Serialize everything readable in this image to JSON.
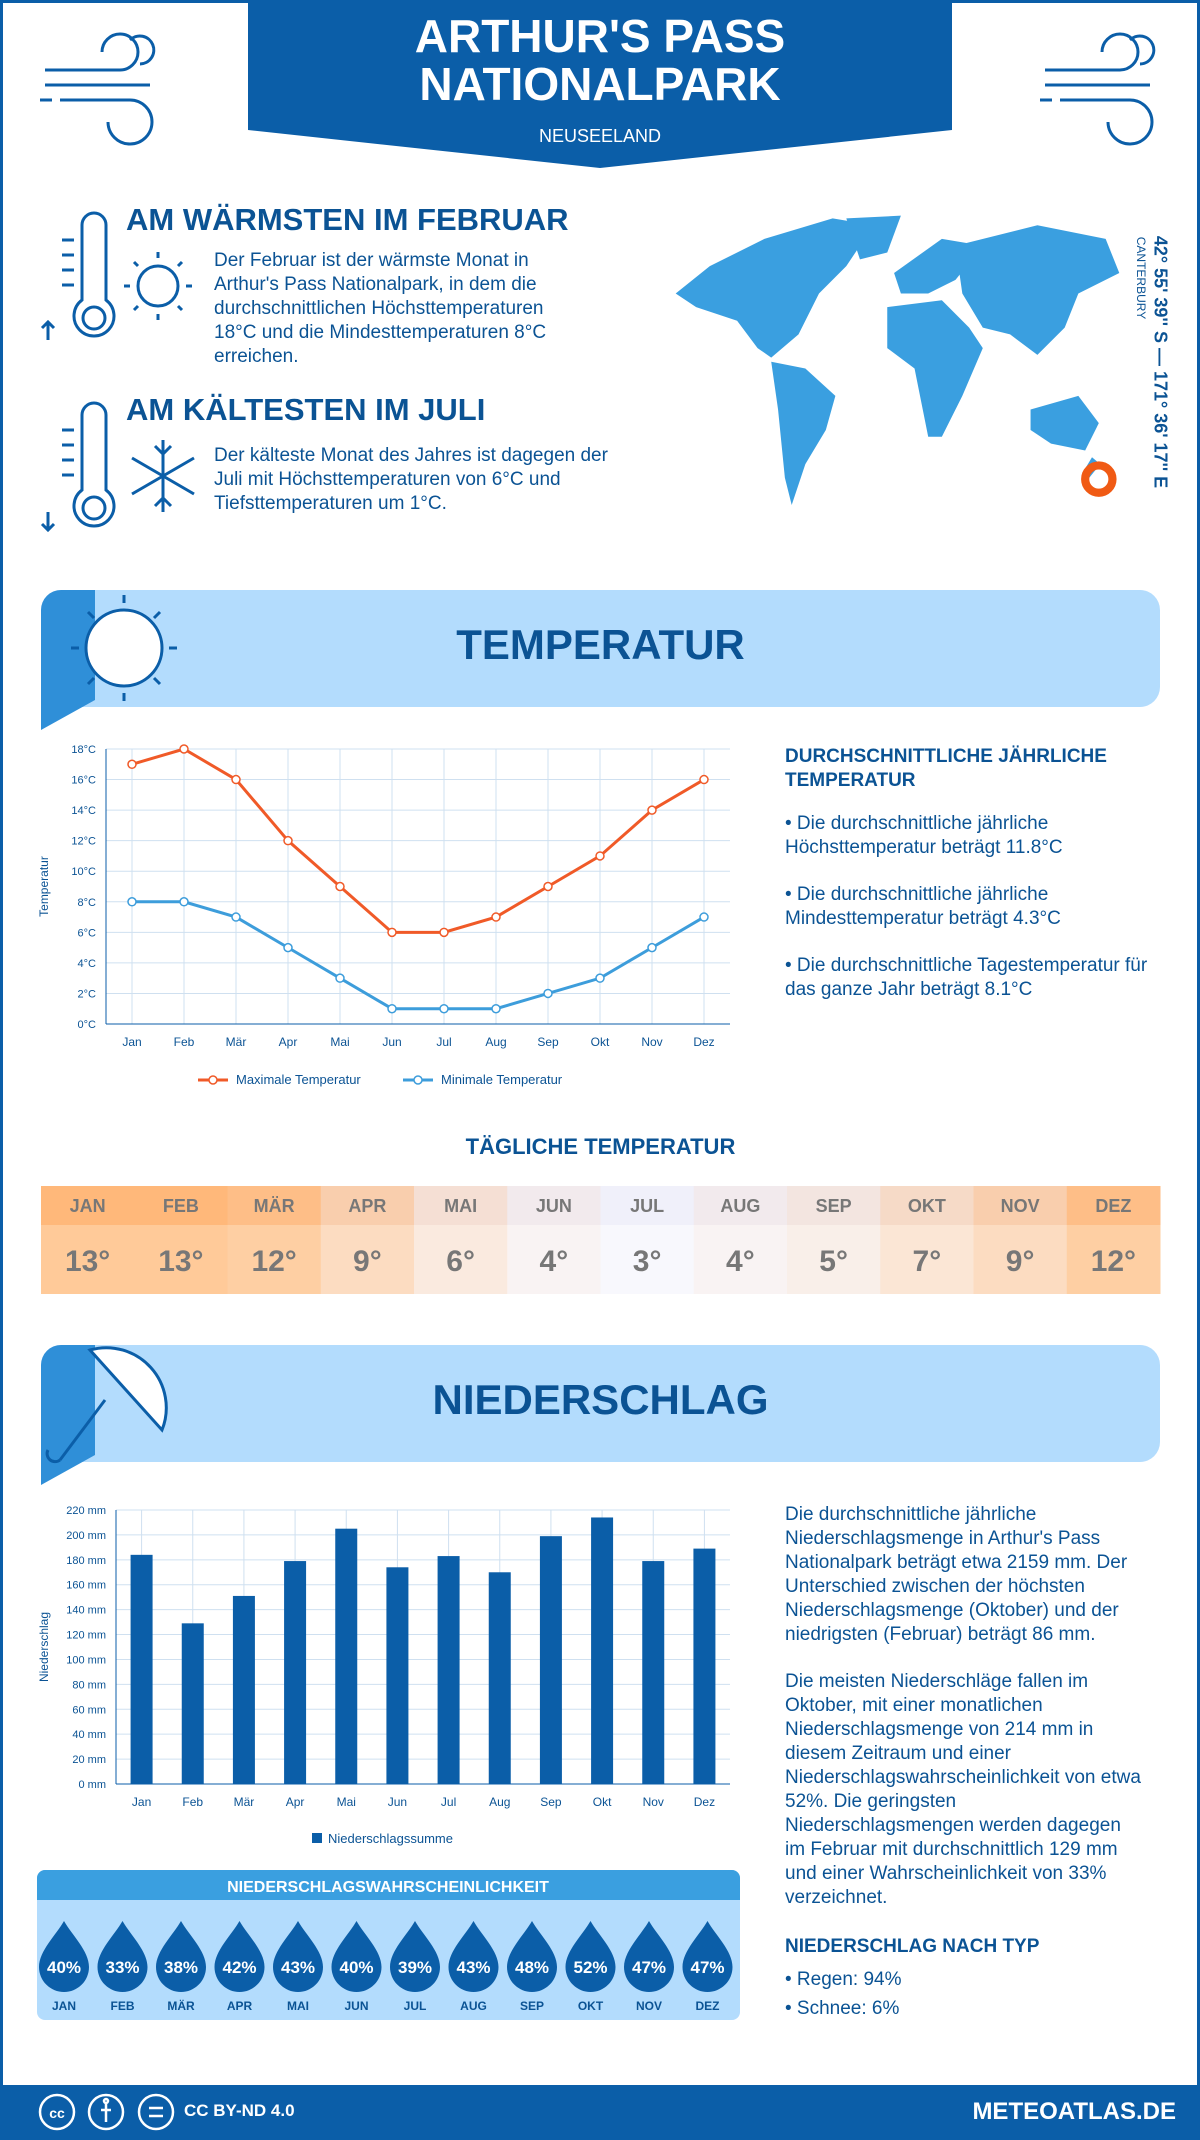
{
  "header": {
    "title": "ARTHUR'S PASS NATIONALPARK",
    "subtitle": "NEUSEELAND"
  },
  "location": {
    "coords": "42° 55' 39'' S — 171° 36' 17'' E",
    "region": "CANTERBURY"
  },
  "warmest": {
    "title": "AM WÄRMSTEN IM FEBRUAR",
    "text": "Der Februar ist der wärmste Monat in Arthur's Pass Nationalpark, in dem die durchschnittlichen Höchsttemperaturen 18°C und die Mindesttemperaturen 8°C erreichen."
  },
  "coldest": {
    "title": "AM KÄLTESTEN IM JULI",
    "text": "Der kälteste Monat des Jahres ist dagegen der Juli mit Höchsttemperaturen von 6°C und Tiefsttemperaturen um 1°C."
  },
  "temperature_section": {
    "title": "TEMPERATUR"
  },
  "precipitation_section": {
    "title": "NIEDERSCHLAG"
  },
  "chart_data": [
    {
      "type": "line",
      "y_label": "Temperatur",
      "grid": true,
      "categories": [
        "Jan",
        "Feb",
        "Mär",
        "Apr",
        "Mai",
        "Jun",
        "Jul",
        "Aug",
        "Sep",
        "Okt",
        "Nov",
        "Dez"
      ],
      "series": [
        {
          "name": "Maximale Temperatur",
          "color": "#f05a28",
          "values": [
            17,
            18,
            16,
            12,
            9,
            6,
            6,
            7,
            9,
            11,
            14,
            16
          ]
        },
        {
          "name": "Minimale Temperatur",
          "color": "#3d9ddb",
          "values": [
            8,
            8,
            7,
            5,
            3,
            1,
            1,
            1,
            2,
            3,
            5,
            7
          ]
        }
      ],
      "ylim": [
        0,
        18
      ],
      "yticks": [
        {
          "value": 0,
          "label": "0°C"
        },
        {
          "value": 2,
          "label": "2°C"
        },
        {
          "value": 4,
          "label": "4°C"
        },
        {
          "value": 6,
          "label": "6°C"
        },
        {
          "value": 8,
          "label": "8°C"
        },
        {
          "value": 10,
          "label": "10°C"
        },
        {
          "value": 12,
          "label": "12°C"
        },
        {
          "value": 14,
          "label": "14°C"
        },
        {
          "value": 16,
          "label": "16°C"
        },
        {
          "value": 18,
          "label": "18°C"
        }
      ]
    },
    {
      "type": "bar",
      "y_label": "Niederschlag",
      "grid": true,
      "categories": [
        "Jan",
        "Feb",
        "Mär",
        "Apr",
        "Mai",
        "Jun",
        "Jul",
        "Aug",
        "Sep",
        "Okt",
        "Nov",
        "Dez"
      ],
      "series": [
        {
          "name": "Niederschlagssumme",
          "color": "#0b5ea8",
          "values": [
            184,
            129,
            151,
            179,
            205,
            174,
            183,
            170,
            199,
            214,
            179,
            189
          ]
        }
      ],
      "ylim": [
        0,
        220
      ],
      "yticks": [
        {
          "value": 0,
          "label": "0 mm"
        },
        {
          "value": 20,
          "label": "20 mm"
        },
        {
          "value": 40,
          "label": "40 mm"
        },
        {
          "value": 60,
          "label": "60 mm"
        },
        {
          "value": 80,
          "label": "80 mm"
        },
        {
          "value": 100,
          "label": "100 mm"
        },
        {
          "value": 120,
          "label": "120 mm"
        },
        {
          "value": 140,
          "label": "140 mm"
        },
        {
          "value": 160,
          "label": "160 mm"
        },
        {
          "value": 180,
          "label": "180 mm"
        },
        {
          "value": 200,
          "label": "200 mm"
        },
        {
          "value": 220,
          "label": "220 mm"
        }
      ]
    }
  ],
  "temperature_summary": {
    "title": "DURCHSCHNITTLICHE JÄHRLICHE TEMPERATUR",
    "items": [
      "• Die durchschnittliche jährliche Höchsttemperatur beträgt 11.8°C",
      "• Die durchschnittliche jährliche Mindesttemperatur beträgt 4.3°C",
      "• Die durchschnittliche Tagestemperatur für das ganze Jahr beträgt 8.1°C"
    ]
  },
  "daily_temperature": {
    "title": "TÄGLICHE TEMPERATUR",
    "months": [
      "JAN",
      "FEB",
      "MÄR",
      "APR",
      "MAI",
      "JUN",
      "JUL",
      "AUG",
      "SEP",
      "OKT",
      "NOV",
      "DEZ"
    ],
    "values": [
      13,
      13,
      12,
      9,
      6,
      4,
      3,
      4,
      5,
      7,
      9,
      12
    ],
    "value_labels": [
      "13°",
      "13°",
      "12°",
      "9°",
      "6°",
      "4°",
      "3°",
      "4°",
      "5°",
      "7°",
      "9°",
      "12°"
    ]
  },
  "precipitation_probability": {
    "title": "NIEDERSCHLAGSWAHRSCHEINLICHKEIT",
    "months": [
      "JAN",
      "FEB",
      "MÄR",
      "APR",
      "MAI",
      "JUN",
      "JUL",
      "AUG",
      "SEP",
      "OKT",
      "NOV",
      "DEZ"
    ],
    "values": [
      40,
      33,
      38,
      42,
      43,
      40,
      39,
      43,
      48,
      52,
      47,
      47
    ],
    "value_labels": [
      "40%",
      "33%",
      "38%",
      "42%",
      "43%",
      "40%",
      "39%",
      "43%",
      "48%",
      "52%",
      "47%",
      "47%"
    ]
  },
  "precipitation_text": {
    "paragraphs": [
      "Die durchschnittliche jährliche Niederschlagsmenge in Arthur's Pass Nationalpark beträgt etwa 2159 mm. Der Unterschied zwischen der höchsten Niederschlagsmenge (Oktober) und der niedrigsten (Februar) beträgt 86 mm.",
      "Die meisten Niederschläge fallen im Oktober, mit einer monatlichen Niederschlagsmenge von 214 mm in diesem Zeitraum und einer Niederschlagswahrscheinlichkeit von etwa 52%. Die geringsten Niederschlagsmengen werden dagegen im Februar mit durchschnittlich 129 mm und einer Wahrscheinlichkeit von 33% verzeichnet."
    ],
    "type_title": "NIEDERSCHLAG NACH TYP",
    "types": [
      "• Regen: 94%",
      "• Schnee: 6%"
    ]
  },
  "footer": {
    "license": "CC BY-ND 4.0",
    "site": "METEOATLAS.DE"
  }
}
